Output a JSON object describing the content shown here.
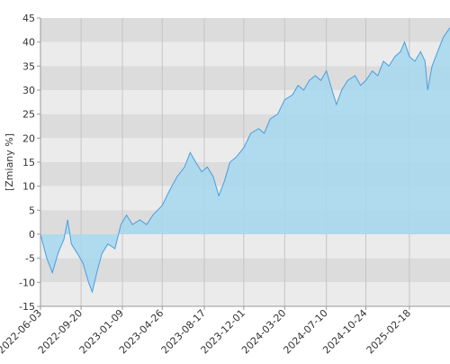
{
  "chart_data": {
    "type": "area",
    "y_label": "[Zmiany %]",
    "x": [
      "2022-06-03",
      "2022-06-20",
      "2022-07-05",
      "2022-07-20",
      "2022-08-05",
      "2022-08-15",
      "2022-08-25",
      "2022-09-10",
      "2022-09-25",
      "2022-10-10",
      "2022-10-20",
      "2022-11-01",
      "2022-11-15",
      "2022-12-01",
      "2022-12-20",
      "2023-01-05",
      "2023-01-20",
      "2023-02-05",
      "2023-02-25",
      "2023-03-15",
      "2023-04-01",
      "2023-04-26",
      "2023-05-15",
      "2023-06-05",
      "2023-06-25",
      "2023-07-10",
      "2023-07-25",
      "2023-08-10",
      "2023-08-25",
      "2023-09-10",
      "2023-09-25",
      "2023-10-10",
      "2023-10-25",
      "2023-11-10",
      "2023-12-01",
      "2023-12-20",
      "2024-01-10",
      "2024-01-25",
      "2024-02-10",
      "2024-03-01",
      "2024-03-20",
      "2024-04-10",
      "2024-04-25",
      "2024-05-10",
      "2024-05-25",
      "2024-06-10",
      "2024-06-25",
      "2024-07-10",
      "2024-07-25",
      "2024-08-06",
      "2024-08-20",
      "2024-09-05",
      "2024-09-25",
      "2024-10-10",
      "2024-10-24",
      "2024-11-10",
      "2024-11-25",
      "2024-12-10",
      "2024-12-25",
      "2025-01-10",
      "2025-01-25",
      "2025-02-05",
      "2025-02-18",
      "2025-03-05",
      "2025-03-20",
      "2025-04-01",
      "2025-04-08",
      "2025-04-20",
      "2025-05-05",
      "2025-05-20",
      "2025-06-07"
    ],
    "series": [
      {
        "color": "#4a9de0",
        "fill": "#a6d8ee",
        "values": [
          0,
          -5,
          -8,
          -4,
          -1,
          3,
          -2,
          -4,
          -6,
          -10,
          -12,
          -8,
          -4,
          -2,
          -3,
          2,
          4,
          2,
          3,
          2,
          4,
          6,
          9,
          12,
          14,
          17,
          15,
          13,
          14,
          12,
          8,
          11,
          15,
          16,
          18,
          21,
          22,
          21,
          24,
          25,
          28,
          29,
          31,
          30,
          32,
          33,
          32,
          34,
          30,
          27,
          30,
          32,
          33,
          31,
          32,
          34,
          33,
          36,
          35,
          37,
          38,
          40,
          37,
          36,
          38,
          36,
          30,
          35,
          38,
          41,
          43
        ]
      }
    ],
    "xlim": [
      "2022-06-03",
      "2025-06-07"
    ],
    "xticks": [
      "2022-06-03",
      "2022-09-20",
      "2023-01-09",
      "2023-04-26",
      "2023-08-17",
      "2023-12-01",
      "2024-03-20",
      "2024-07-10",
      "2024-10-24",
      "2025-02-18"
    ],
    "ylim": [
      -15,
      45
    ],
    "yticks": [
      -15,
      -10,
      -5,
      0,
      5,
      10,
      15,
      20,
      25,
      30,
      35,
      40,
      45
    ],
    "grid_colors": [
      "#dcdcdc",
      "#ebebeb"
    ]
  }
}
